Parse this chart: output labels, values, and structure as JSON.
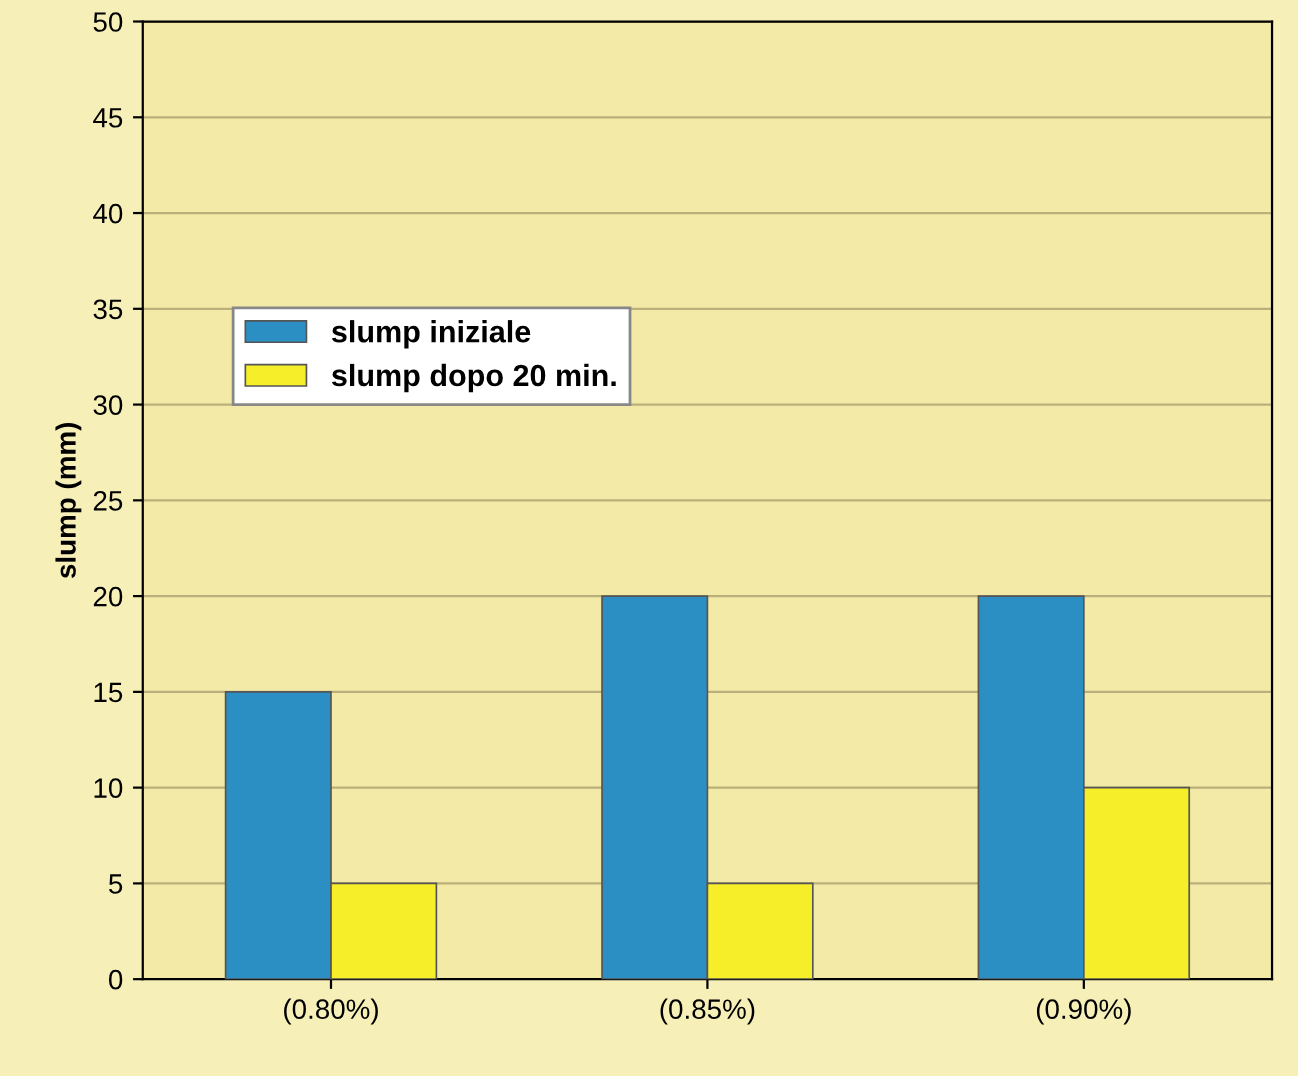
{
  "chart_data": {
    "type": "bar",
    "ylabel": "slump (mm)",
    "categories": [
      "(0.80%)",
      "(0.85%)",
      "(0.90%)"
    ],
    "series": [
      {
        "name": "slump iniziale",
        "color": "#2b8fc4",
        "values": [
          15,
          20,
          20
        ]
      },
      {
        "name": "slump dopo 20 min.",
        "color": "#f7ee2a",
        "values": [
          5,
          5,
          10
        ]
      }
    ],
    "ylim": [
      0,
      50
    ],
    "yticks": [
      0,
      5,
      10,
      15,
      20,
      25,
      30,
      35,
      40,
      45,
      50
    ],
    "grid": "y",
    "legend": "top left"
  }
}
